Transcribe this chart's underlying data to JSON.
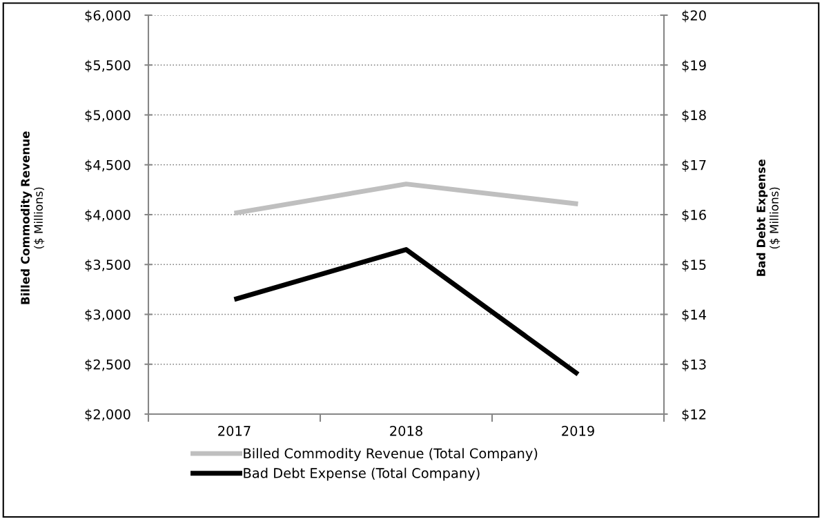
{
  "chart_data": {
    "type": "line",
    "categories": [
      "2017",
      "2018",
      "2019"
    ],
    "series": [
      {
        "name": "Billed Commodity Revenue (Total Company)",
        "color": "#bfbfbf",
        "values": [
          4015,
          4307,
          4107
        ]
      },
      {
        "name": "Bad Debt Expense (Total Company)",
        "color": "#000000",
        "values": [
          14.3,
          15.3,
          12.8
        ],
        "axis": "y2"
      }
    ],
    "ylabel": "Billed Commodity Revenue\n($ Millions)",
    "y2label": "Bad Debt Expense\n($ Millions)",
    "ylim": [
      2000,
      6000
    ],
    "yticks": [
      {
        "value": 2000,
        "label": "$2,000"
      },
      {
        "value": 2500,
        "label": "$2,500"
      },
      {
        "value": 3000,
        "label": "$3,000"
      },
      {
        "value": 3500,
        "label": "$3,500"
      },
      {
        "value": 4000,
        "label": "$4,000"
      },
      {
        "value": 4500,
        "label": "$4,500"
      },
      {
        "value": 5000,
        "label": "$5,000"
      },
      {
        "value": 5500,
        "label": "$5,500"
      },
      {
        "value": 6000,
        "label": "$6,000"
      }
    ],
    "y2lim": [
      12,
      20
    ],
    "y2ticks": [
      {
        "value": 12,
        "label": "$12"
      },
      {
        "value": 13,
        "label": "$13"
      },
      {
        "value": 14,
        "label": "$14"
      },
      {
        "value": 15,
        "label": "$15"
      },
      {
        "value": 16,
        "label": "$16"
      },
      {
        "value": 17,
        "label": "$17"
      },
      {
        "value": 18,
        "label": "$18"
      },
      {
        "value": 19,
        "label": "$19"
      },
      {
        "value": 20,
        "label": "$20"
      }
    ],
    "grid": "y",
    "legend": "bottom",
    "line_style": "solid",
    "marker": "none"
  }
}
